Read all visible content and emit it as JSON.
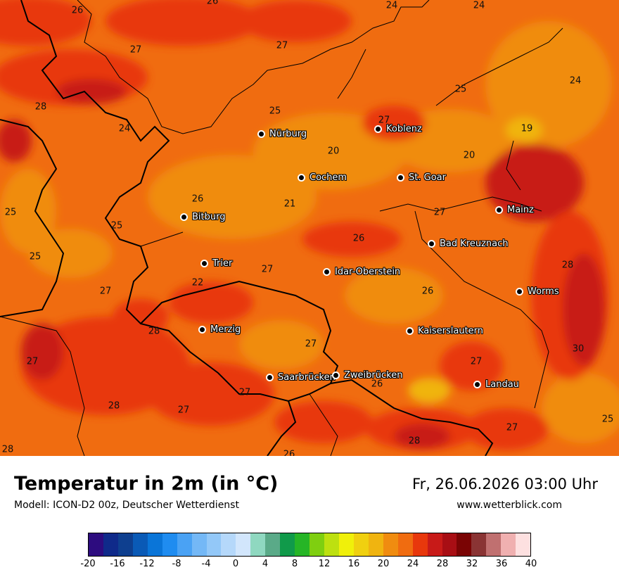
{
  "map": {
    "cities": [
      {
        "name": "Nürburg"
      },
      {
        "name": "Koblenz"
      },
      {
        "name": "Cochem"
      },
      {
        "name": "St. Goar"
      },
      {
        "name": "Mainz"
      },
      {
        "name": "Bitburg"
      },
      {
        "name": "Bad Kreuznach"
      },
      {
        "name": "Trier"
      },
      {
        "name": "Idar-Oberstein"
      },
      {
        "name": "Worms"
      },
      {
        "name": "Merzig"
      },
      {
        "name": "Kaiserslautern"
      },
      {
        "name": "Saarbrücken"
      },
      {
        "name": "Zweibrücken"
      },
      {
        "name": "Landau"
      }
    ],
    "values": [
      "26",
      "26",
      "24",
      "24",
      "27",
      "24",
      "25",
      "28",
      "24",
      "27",
      "25",
      "27",
      "19",
      "20",
      "20",
      "25",
      "26",
      "21",
      "27",
      "25",
      "25",
      "26",
      "27",
      "26",
      "28",
      "22",
      "27",
      "28",
      "27",
      "27",
      "30",
      "27",
      "26",
      "27",
      "28",
      "27",
      "28",
      "27",
      "25",
      "28",
      "26"
    ]
  },
  "legend": {
    "title": "Temperatur in 2m (in °C)",
    "subtitle": "Modell: ICON-D2 00z, Deutscher Wetterdienst",
    "datetime": "Fr, 26.06.2026 03:00 Uhr",
    "website": "www.wetterblick.com",
    "ticks": [
      "-20",
      "-16",
      "-12",
      "-8",
      "-4",
      "0",
      "4",
      "8",
      "12",
      "16",
      "20",
      "24",
      "28",
      "32",
      "36",
      "40"
    ],
    "colors": [
      "#2d0c7f",
      "#0f2a8a",
      "#0e3f8f",
      "#0a5ab6",
      "#0a75d8",
      "#1f8cf0",
      "#4aa2f4",
      "#74b8f6",
      "#93c8f8",
      "#b5d8fa",
      "#d2e6fc",
      "#8fd8c0",
      "#5aaa88",
      "#109a4a",
      "#26b526",
      "#7fcf10",
      "#bde010",
      "#f0f00a",
      "#f0d010",
      "#f0b410",
      "#f08c10",
      "#f06c10",
      "#e8380c",
      "#c81a18",
      "#a80e14",
      "#7a0404",
      "#8a3434",
      "#c07070",
      "#f0b0b0",
      "#fde0e0"
    ]
  }
}
